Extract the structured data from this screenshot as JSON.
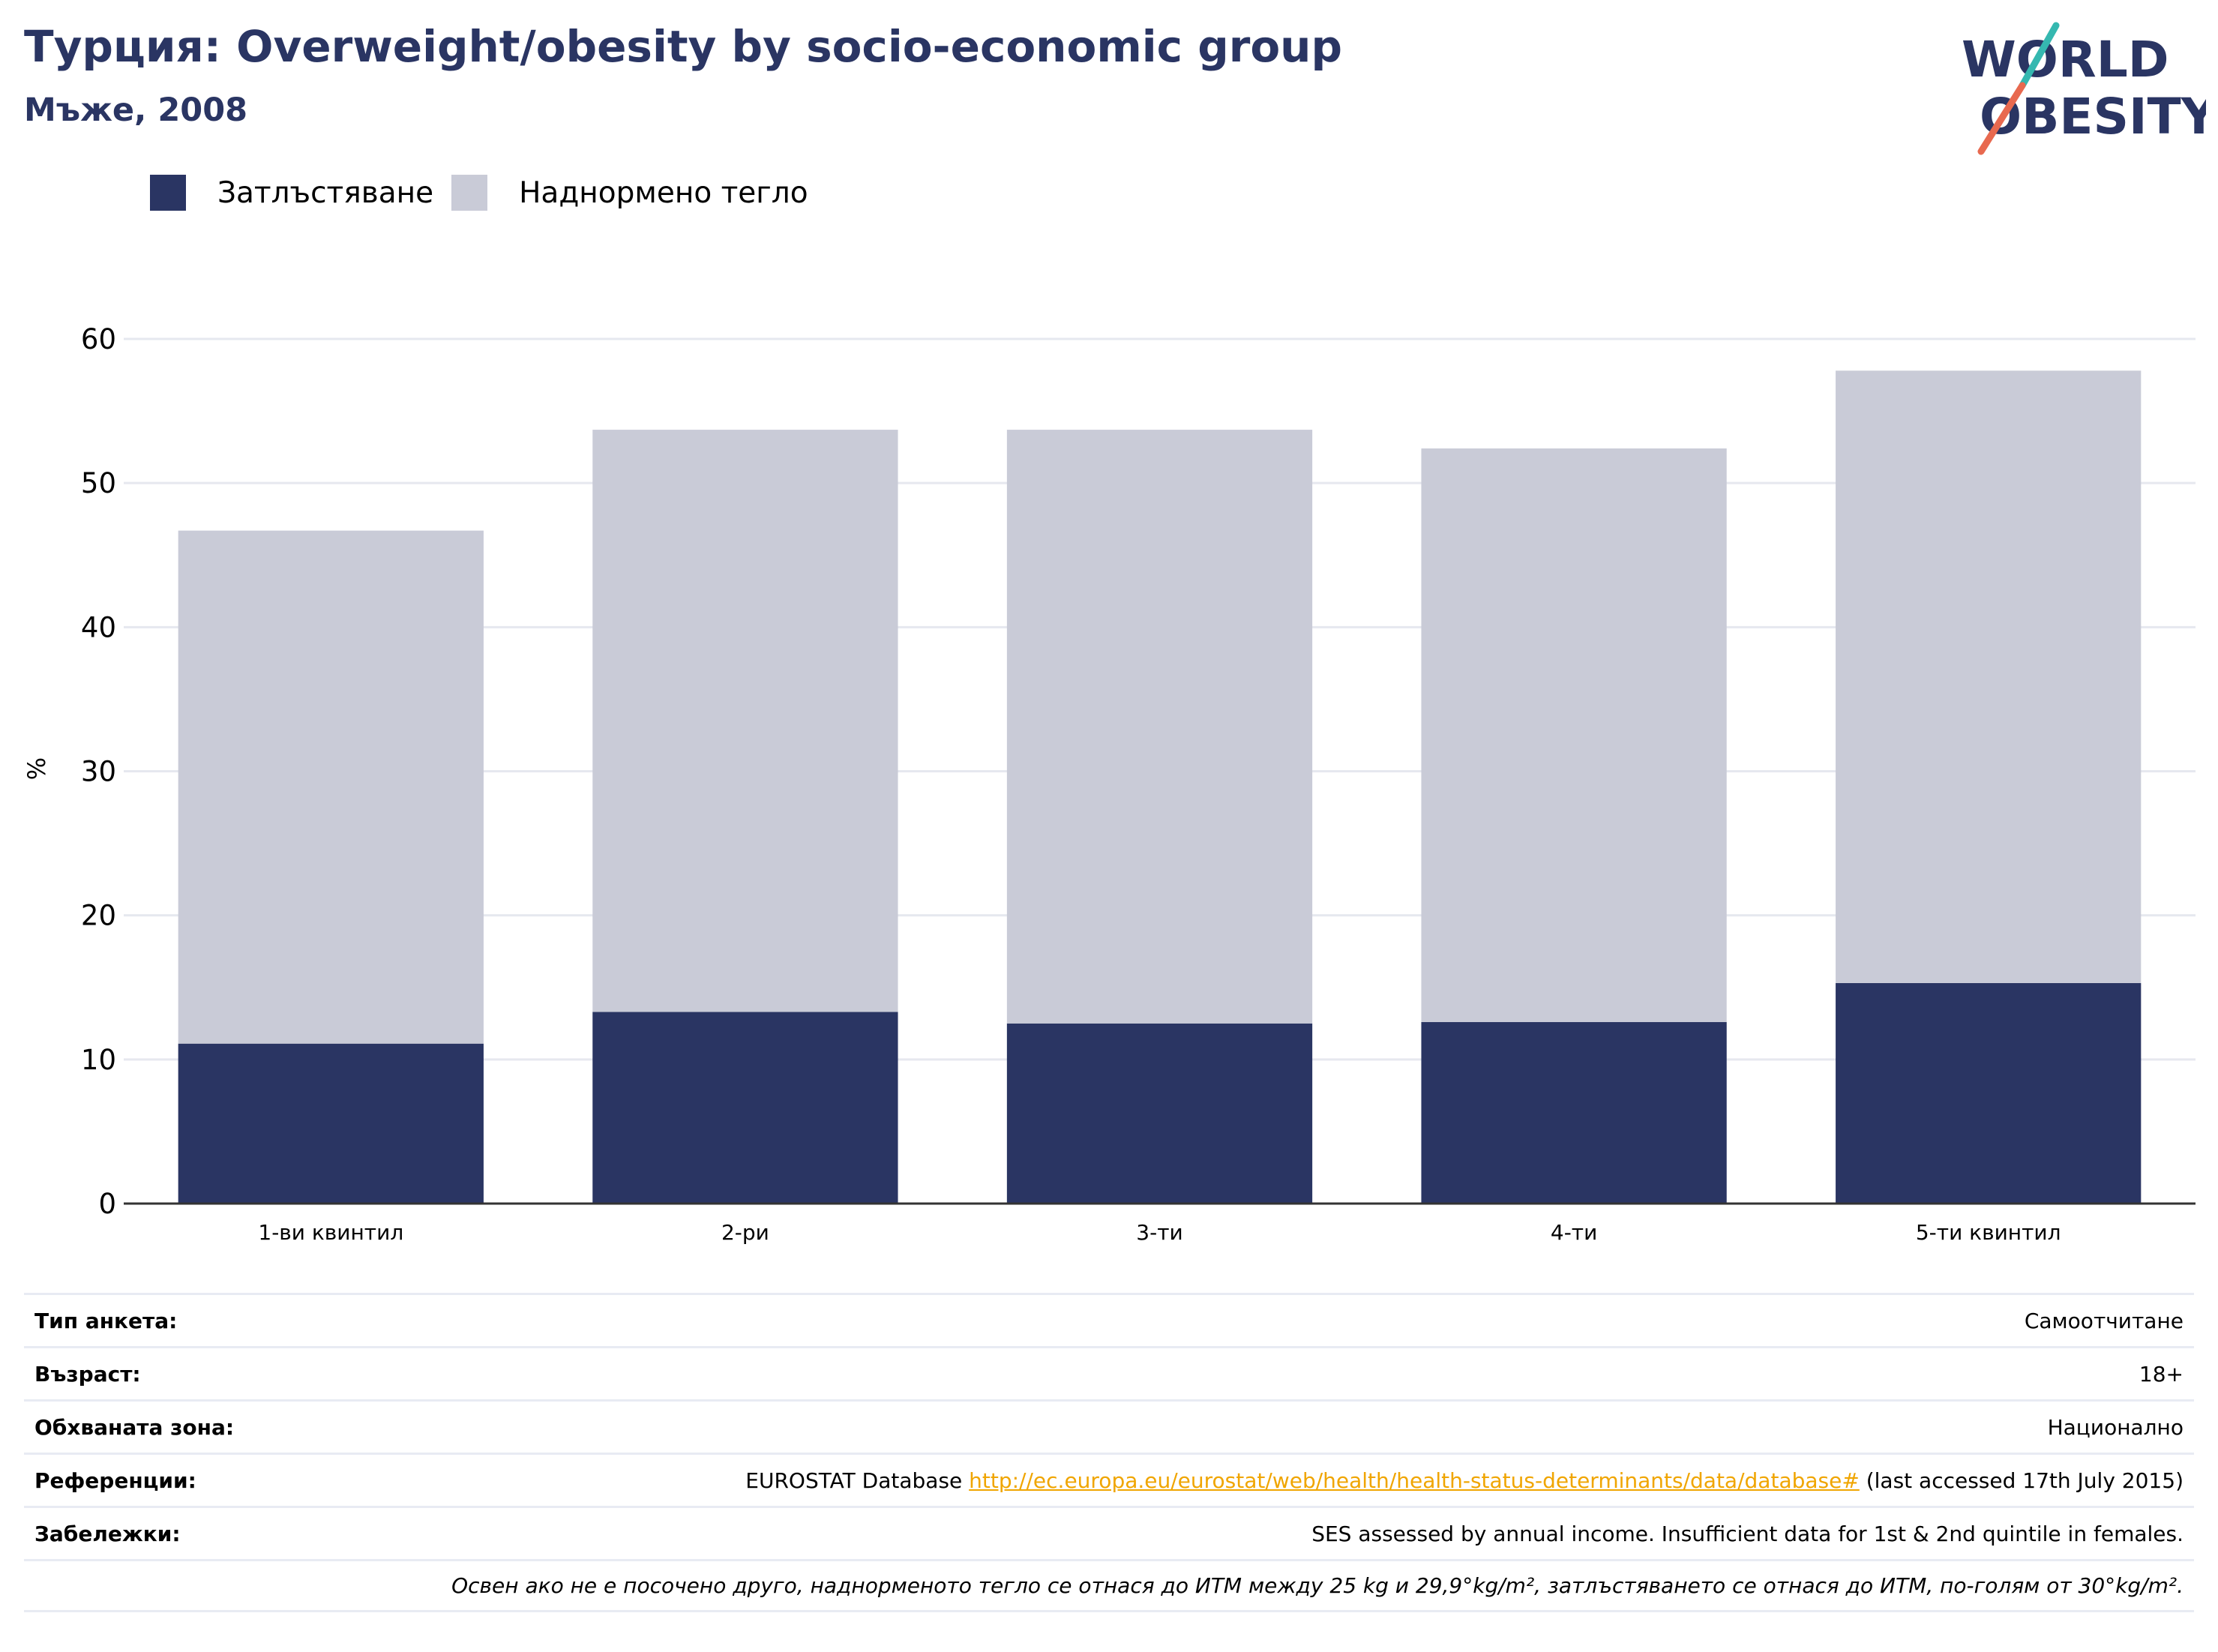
{
  "header": {
    "title": "Турция: Overweight/obesity by socio-economic group",
    "subtitle": "Мъже, 2008",
    "logo_line1": "WORLD",
    "logo_line2": "OBESITY"
  },
  "legend": {
    "obesity_label": "Затлъстяване",
    "overweight_label": "Наднормено тегло"
  },
  "colors": {
    "obesity": "#2a3563",
    "overweight": "#c9cbd7",
    "title": "#2a3563",
    "grid": "#e6e8ef",
    "axis": "#333333",
    "link": "#f0a500",
    "logo_teal": "#35b8b0",
    "logo_coral": "#e8694f"
  },
  "chart_data": {
    "type": "bar",
    "stacked": true,
    "categories": [
      "1-ви квинтил",
      "2-ри",
      "3-ти",
      "4-ти",
      "5-ти квинтил"
    ],
    "series": [
      {
        "name": "Затлъстяване",
        "values": [
          11.1,
          13.3,
          12.5,
          12.6,
          15.3
        ]
      },
      {
        "name": "Наднормено тегло",
        "values": [
          35.6,
          40.4,
          41.2,
          39.8,
          42.5
        ]
      }
    ],
    "ylabel": "%",
    "ylim": [
      0,
      60
    ],
    "yticks": [
      0,
      10,
      20,
      30,
      40,
      50,
      60
    ],
    "grid": true,
    "legend_position": "top-left"
  },
  "meta": {
    "survey_type_label": "Тип анкета:",
    "survey_type_value": "Самоотчитане",
    "age_label": "Възраст:",
    "age_value": "18+",
    "area_label": "Обхваната зона:",
    "area_value": "Национално",
    "references_label": "Референции:",
    "references_prefix": "EUROSTAT Database",
    "references_link": "http://ec.europa.eu/eurostat/web/health/health-status-determinants/data/database#",
    "references_suffix": "(last accessed 17th July 2015)",
    "notes_label": "Забележки:",
    "notes_value": "SES assessed by annual income. Insufficient data for 1st & 2nd quintile in females.",
    "footnote": "Освен ако не е посочено друго, наднорменото тегло се отнася до ИТМ между 25 kg и 29,9°kg/m², затлъстяването се отнася до ИТМ, по-голям от 30°kg/m²."
  }
}
